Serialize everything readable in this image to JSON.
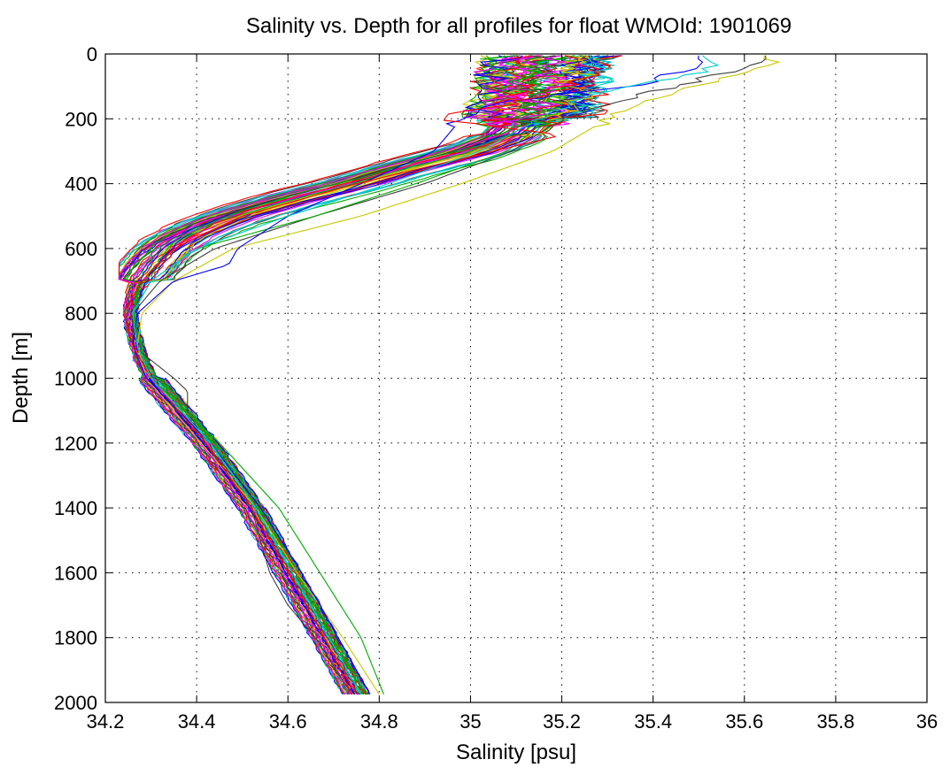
{
  "chart_data": {
    "type": "line",
    "title": "Salinity vs. Depth for all profiles for float WMOId: 1901069",
    "xlabel": "Salinity [psu]",
    "ylabel": "Depth [m]",
    "xlim": [
      34.2,
      36
    ],
    "ylim": [
      0,
      2000
    ],
    "y_reversed": true,
    "grid": true,
    "x_ticks": [
      "34.2",
      "34.4",
      "34.6",
      "34.8",
      "35",
      "35.2",
      "35.4",
      "35.6",
      "35.8",
      "36"
    ],
    "y_ticks": [
      "0",
      "200",
      "400",
      "600",
      "800",
      "1000",
      "1200",
      "1400",
      "1600",
      "1800",
      "2000"
    ],
    "series_colors": [
      "#0000ff",
      "#ff0000",
      "#00aa00",
      "#ff00ff",
      "#00cccc",
      "#c8c800",
      "#404040"
    ],
    "mean_profile": {
      "depth": [
        5,
        50,
        100,
        150,
        200,
        250,
        300,
        350,
        400,
        450,
        500,
        550,
        600,
        650,
        700,
        750,
        800,
        850,
        900,
        950,
        1000,
        1100,
        1200,
        1300,
        1400,
        1500,
        1600,
        1700,
        1800,
        1900,
        1975
      ],
      "salinity": [
        35.18,
        35.16,
        35.15,
        35.14,
        35.13,
        35.09,
        35.0,
        34.86,
        34.74,
        34.6,
        34.48,
        34.39,
        34.33,
        34.3,
        34.27,
        34.26,
        34.255,
        34.26,
        34.27,
        34.28,
        34.3,
        34.36,
        34.42,
        34.47,
        34.52,
        34.56,
        34.6,
        34.64,
        34.68,
        34.72,
        34.75
      ]
    },
    "highlighted_profiles": [
      {
        "color": "#c8c800",
        "depth": [
          5,
          30,
          60,
          100,
          150,
          200,
          300,
          400,
          500,
          600,
          700,
          800,
          900,
          1000,
          1200,
          1400,
          1600,
          1800,
          1975
        ],
        "salinity": [
          35.66,
          35.65,
          35.6,
          35.48,
          35.38,
          35.3,
          35.18,
          34.98,
          34.76,
          34.48,
          34.35,
          34.28,
          34.27,
          34.29,
          34.41,
          34.53,
          34.62,
          34.72,
          34.8
        ]
      },
      {
        "color": "#404040",
        "depth": [
          5,
          30,
          60,
          100,
          150,
          200,
          300,
          400,
          500,
          600,
          700,
          800,
          900,
          1000,
          1040,
          1100,
          1200,
          1400,
          1600,
          1700,
          1800,
          1975
        ],
        "salinity": [
          35.65,
          35.62,
          35.55,
          35.45,
          35.3,
          35.2,
          35.09,
          34.9,
          34.66,
          34.44,
          34.32,
          34.26,
          34.26,
          34.35,
          34.38,
          34.38,
          34.42,
          34.52,
          34.56,
          34.6,
          34.66,
          34.74
        ]
      },
      {
        "color": "#00aa00",
        "depth": [
          5,
          30,
          60,
          100,
          150,
          200,
          300,
          400,
          500,
          600,
          700,
          800,
          900,
          1000,
          1200,
          1400,
          1600,
          1800,
          1975
        ],
        "salinity": [
          35.05,
          35.05,
          35.08,
          35.14,
          35.18,
          35.17,
          35.08,
          34.88,
          34.66,
          34.4,
          34.3,
          34.26,
          34.27,
          34.3,
          34.45,
          34.58,
          34.67,
          34.76,
          34.81
        ]
      },
      {
        "color": "#0000ff",
        "depth": [
          5,
          30,
          60,
          100,
          150,
          200,
          300,
          400,
          500,
          600,
          650,
          700,
          800,
          900,
          1000,
          1200,
          1400,
          1600,
          1800,
          1975
        ],
        "salinity": [
          35.5,
          35.5,
          35.45,
          35.35,
          35.05,
          34.98,
          34.92,
          34.76,
          34.6,
          34.49,
          34.47,
          34.35,
          34.27,
          34.26,
          34.29,
          34.43,
          34.54,
          34.63,
          34.71,
          34.78
        ]
      },
      {
        "color": "#ff0000",
        "depth": [
          5,
          30,
          60,
          100,
          150,
          200,
          250,
          300,
          400,
          500,
          600,
          700,
          800,
          900,
          1000,
          1200,
          1400,
          1600,
          1800,
          1975
        ],
        "salinity": [
          35.2,
          35.25,
          35.3,
          35.2,
          35.1,
          34.92,
          35.2,
          35.05,
          34.75,
          34.5,
          34.35,
          34.28,
          34.24,
          34.26,
          34.3,
          34.42,
          34.52,
          34.6,
          34.68,
          34.74
        ]
      },
      {
        "color": "#00cccc",
        "depth": [
          5,
          30,
          60,
          100,
          150,
          200,
          300,
          400,
          500,
          600,
          700,
          800,
          900,
          1000,
          1200,
          1400,
          1600,
          1800,
          1975
        ],
        "salinity": [
          35.52,
          35.55,
          35.5,
          35.35,
          35.22,
          35.15,
          35.02,
          34.82,
          34.6,
          34.4,
          34.3,
          34.26,
          34.27,
          34.3,
          34.43,
          34.53,
          34.61,
          34.69,
          34.76
        ]
      }
    ]
  }
}
